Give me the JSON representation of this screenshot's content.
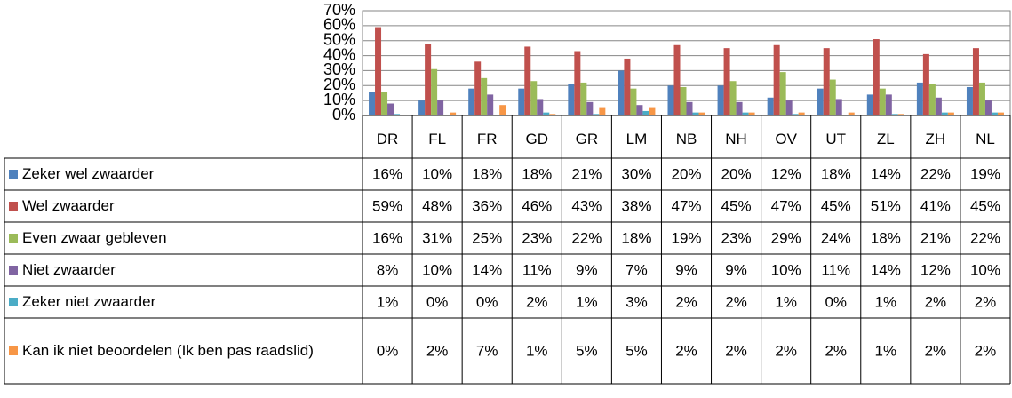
{
  "chart_data": {
    "type": "bar",
    "categories": [
      "DR",
      "FL",
      "FR",
      "GD",
      "GR",
      "LM",
      "NB",
      "NH",
      "OV",
      "UT",
      "ZL",
      "ZH",
      "NL"
    ],
    "ylim": [
      0,
      70
    ],
    "yticks": [
      {
        "value": 0,
        "label": "0%"
      },
      {
        "value": 10,
        "label": "10%"
      },
      {
        "value": 20,
        "label": "20%"
      },
      {
        "value": 30,
        "label": "30%"
      },
      {
        "value": 40,
        "label": "40%"
      },
      {
        "value": 50,
        "label": "50%"
      },
      {
        "value": 60,
        "label": "60%"
      },
      {
        "value": 70,
        "label": "70%"
      }
    ],
    "grid": true,
    "series": [
      {
        "name": "Zeker wel zwaarder",
        "color": "#4f81bd",
        "values": [
          16,
          10,
          18,
          18,
          21,
          30,
          20,
          20,
          12,
          18,
          14,
          22,
          19
        ],
        "value_labels": [
          "16%",
          "10%",
          "18%",
          "18%",
          "21%",
          "30%",
          "20%",
          "20%",
          "12%",
          "18%",
          "14%",
          "22%",
          "19%"
        ]
      },
      {
        "name": "Wel zwaarder",
        "color": "#c0504d",
        "values": [
          59,
          48,
          36,
          46,
          43,
          38,
          47,
          45,
          47,
          45,
          51,
          41,
          45
        ],
        "value_labels": [
          "59%",
          "48%",
          "36%",
          "46%",
          "43%",
          "38%",
          "47%",
          "45%",
          "47%",
          "45%",
          "51%",
          "41%",
          "45%"
        ]
      },
      {
        "name": "Even zwaar gebleven",
        "color": "#9bbb59",
        "values": [
          16,
          31,
          25,
          23,
          22,
          18,
          19,
          23,
          29,
          24,
          18,
          21,
          22
        ],
        "value_labels": [
          "16%",
          "31%",
          "25%",
          "23%",
          "22%",
          "18%",
          "19%",
          "23%",
          "29%",
          "24%",
          "18%",
          "21%",
          "22%"
        ]
      },
      {
        "name": "Niet zwaarder",
        "color": "#8064a2",
        "values": [
          8,
          10,
          14,
          11,
          9,
          7,
          9,
          9,
          10,
          11,
          14,
          12,
          10
        ],
        "value_labels": [
          "8%",
          "10%",
          "14%",
          "11%",
          "9%",
          "7%",
          "9%",
          "9%",
          "10%",
          "11%",
          "14%",
          "12%",
          "10%"
        ]
      },
      {
        "name": "Zeker niet zwaarder",
        "color": "#4bacc6",
        "values": [
          1,
          0,
          0,
          2,
          1,
          3,
          2,
          2,
          1,
          0,
          1,
          2,
          2
        ],
        "value_labels": [
          "1%",
          "0%",
          "0%",
          "2%",
          "1%",
          "3%",
          "2%",
          "2%",
          "1%",
          "0%",
          "1%",
          "2%",
          "2%"
        ]
      },
      {
        "name": "Kan ik niet beoordelen (Ik ben pas raadslid)",
        "color": "#f79646",
        "values": [
          0,
          2,
          7,
          1,
          5,
          5,
          2,
          2,
          2,
          2,
          1,
          2,
          2
        ],
        "value_labels": [
          "0%",
          "2%",
          "7%",
          "1%",
          "5%",
          "5%",
          "2%",
          "2%",
          "2%",
          "2%",
          "1%",
          "2%",
          "2%"
        ]
      }
    ]
  }
}
